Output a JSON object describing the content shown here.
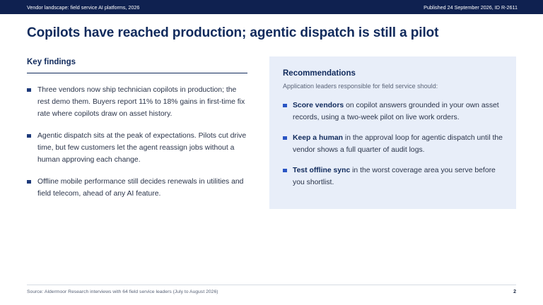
{
  "header": {
    "series": "Vendor landscape: field service AI platforms, 2026",
    "published": "Published 24 September 2026, ID R-2611"
  },
  "title": "Copilots have reached production; agentic dispatch is still a pilot",
  "findings": {
    "heading": "Key findings",
    "items": [
      "Three vendors now ship technician copilots in production; the rest demo them. Buyers report 11% to 18% gains in first-time fix rate where copilots draw on asset history.",
      "Agentic dispatch sits at the peak of expectations. Pilots cut drive time, but few customers let the agent reassign jobs without a human approving each change.",
      "Offline mobile performance still decides renewals in utilities and field telecom, ahead of any AI feature."
    ]
  },
  "recommendations": {
    "heading": "Recommendations",
    "intro": "Application leaders responsible for field service should:",
    "items": [
      {
        "bold": "Score vendors",
        "rest": " on copilot answers grounded in your own asset records, using a two-week pilot on live work orders."
      },
      {
        "bold": "Keep a human",
        "rest": " in the approval loop for agentic dispatch until the vendor shows a full quarter of audit logs."
      },
      {
        "bold": "Test offline sync",
        "rest": " in the worst coverage area you serve before you shortlist."
      }
    ]
  },
  "footer": {
    "source": "Source: Aldermoor Research interviews with 64 field service leaders (July to August 2026)",
    "page": "2"
  }
}
